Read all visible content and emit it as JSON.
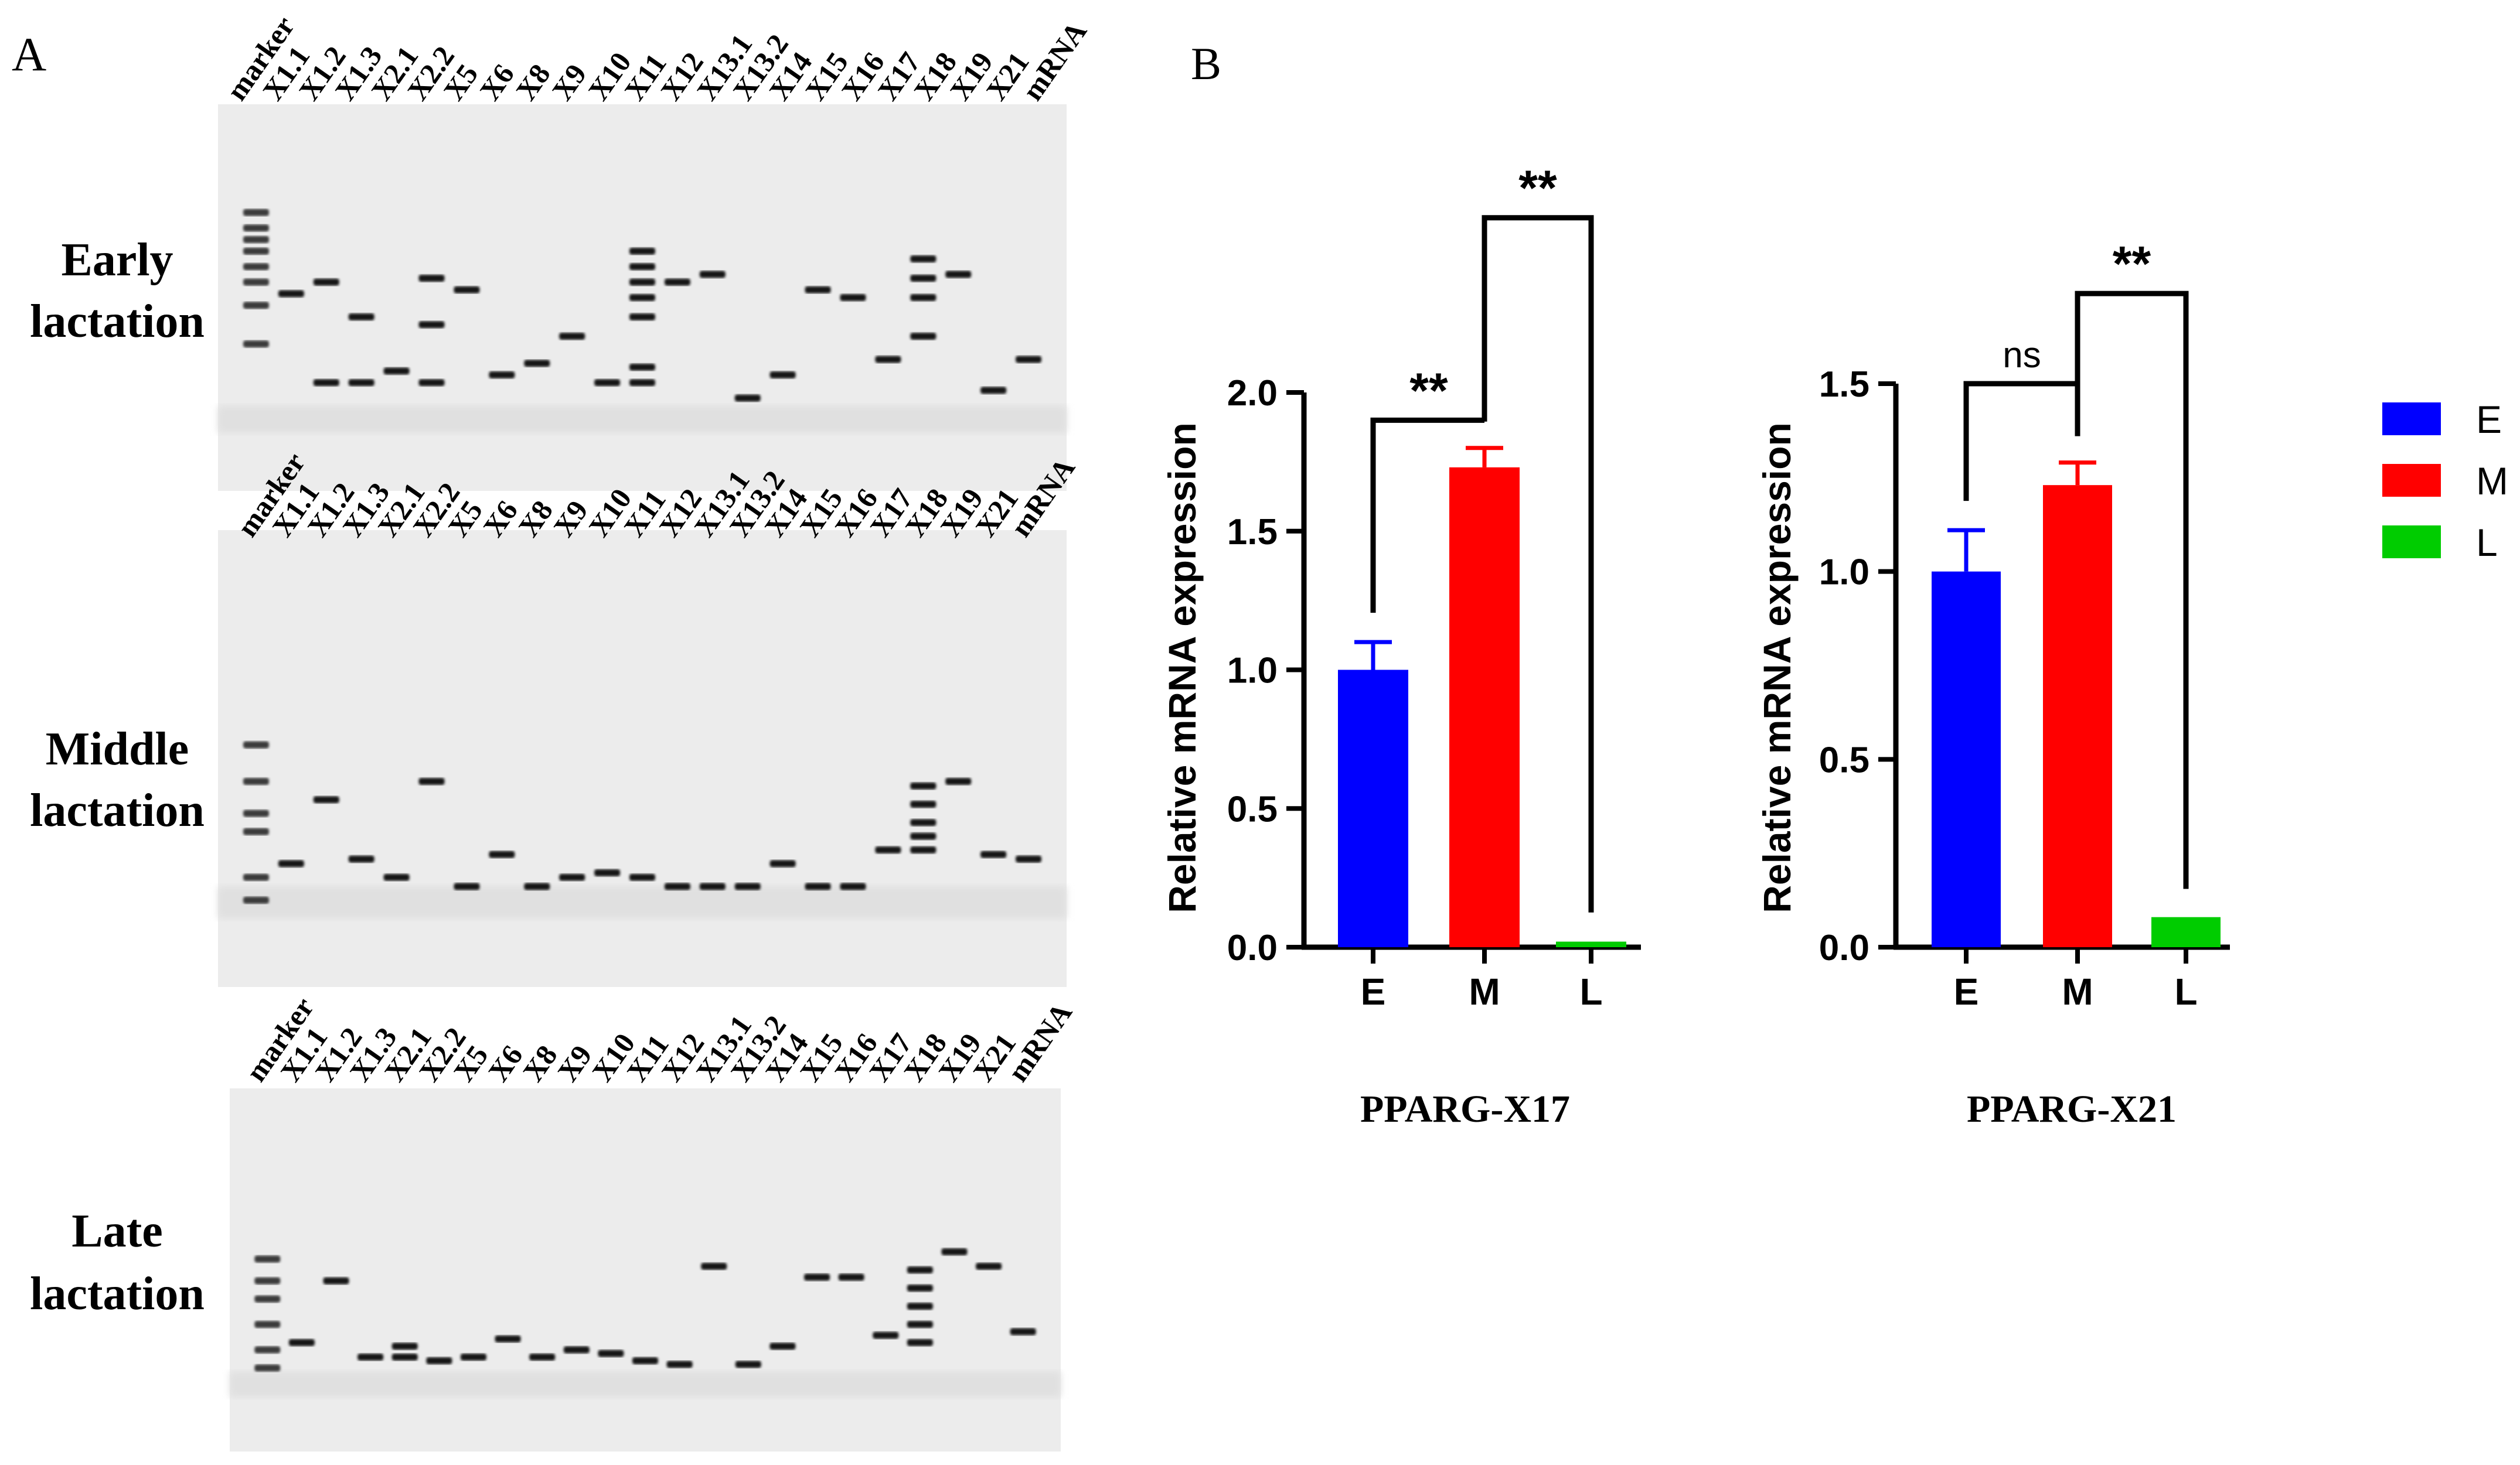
{
  "panel_a": {
    "label": "A",
    "lane_labels": [
      "marker",
      "X1.1",
      "X1.2",
      "X1.3",
      "X2.1",
      "X2.2",
      "X5",
      "X6",
      "X8",
      "X9",
      "X10",
      "X11",
      "X12",
      "X13.1",
      "X13.2",
      "X14",
      "X15",
      "X16",
      "X17",
      "X18",
      "X19",
      "X21",
      "mRNA"
    ],
    "gels": [
      {
        "row_label_1": "Early",
        "row_label_2": "lactation"
      },
      {
        "row_label_1": "Middle",
        "row_label_2": "lactation"
      },
      {
        "row_label_1": "Late",
        "row_label_2": "lactation"
      }
    ]
  },
  "panel_b": {
    "label": "B"
  },
  "legend": [
    {
      "label": "E",
      "color": "#0000ff"
    },
    {
      "label": "M",
      "color": "#ff0000"
    },
    {
      "label": "L",
      "color": "#00cc00"
    }
  ],
  "chart_data": [
    {
      "type": "bar",
      "title": "PPARG-X17",
      "categories": [
        "E",
        "M",
        "L"
      ],
      "values": [
        1.0,
        1.73,
        0.02
      ],
      "errors": [
        0.1,
        0.07,
        0.01
      ],
      "ylabel": "Relative mRNA expression",
      "xlabel": "",
      "ylim": [
        0,
        2.0
      ],
      "yticks": [
        "0.0",
        "0.5",
        "1.0",
        "1.5",
        "2.0"
      ],
      "tick_values": [
        0,
        0.5,
        1.0,
        1.5,
        2.0
      ],
      "colors": [
        "#0000ff",
        "#ff0000",
        "#00cc00"
      ],
      "significance": [
        {
          "from": 0,
          "to": 1,
          "text": "**",
          "y": 1.9
        },
        {
          "from": 1,
          "to": 2,
          "text": "**",
          "y": 2.63
        }
      ]
    },
    {
      "type": "bar",
      "title": "PPARG-X21",
      "categories": [
        "E",
        "M",
        "L"
      ],
      "values": [
        1.0,
        1.23,
        0.08
      ],
      "errors": [
        0.11,
        0.06,
        0.005
      ],
      "ylabel": "Relative mRNA expression",
      "xlabel": "",
      "ylim": [
        0,
        1.5
      ],
      "yticks": [
        "0.0",
        "0.5",
        "1.0",
        "1.5"
      ],
      "tick_values": [
        0,
        0.5,
        1.0,
        1.5
      ],
      "colors": [
        "#0000ff",
        "#ff0000",
        "#00cc00"
      ],
      "significance": [
        {
          "from": 0,
          "to": 1,
          "text": "ns",
          "y": 1.5
        },
        {
          "from": 1,
          "to": 2,
          "text": "**",
          "y": 1.74
        }
      ]
    }
  ]
}
